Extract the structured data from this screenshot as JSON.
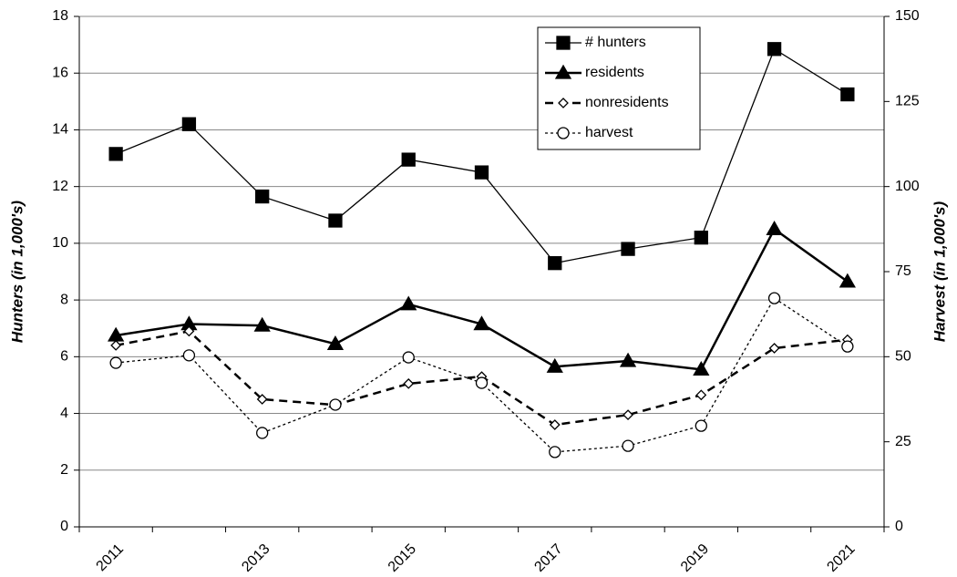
{
  "chart_data": {
    "type": "line",
    "categories": [
      "2011",
      null,
      "2013",
      null,
      "2015",
      null,
      "2017",
      null,
      "2019",
      null,
      "2021"
    ],
    "y_label": "Hunters (in 1,000's)",
    "y2_label": "Harvest (in 1,000's)",
    "ylim": [
      0,
      18
    ],
    "yticks": [
      0,
      2,
      4,
      6,
      8,
      10,
      12,
      14,
      16,
      18
    ],
    "y2lim": [
      0,
      150
    ],
    "y2ticks": [
      0,
      25,
      50,
      75,
      100,
      125,
      150
    ],
    "grid": true,
    "legend": "top-right",
    "series": [
      {
        "name": "# hunters",
        "color": "#000000",
        "marker": "square",
        "line_width": 1.3,
        "dash": "none",
        "values": [
          13.15,
          14.2,
          11.65,
          10.8,
          12.95,
          12.5,
          9.3,
          9.8,
          10.2,
          16.85,
          15.25
        ]
      },
      {
        "name": "residents",
        "color": "#000000",
        "marker": "triangle",
        "line_width": 2.5,
        "dash": "none",
        "values": [
          6.75,
          7.15,
          7.1,
          6.45,
          7.85,
          7.15,
          5.65,
          5.85,
          5.55,
          10.5,
          8.65
        ]
      },
      {
        "name": "nonresidents",
        "color": "#000000",
        "marker": "diamond",
        "line_width": 2.5,
        "dash": "9 6",
        "values": [
          6.4,
          6.9,
          4.5,
          4.3,
          5.05,
          5.3,
          3.6,
          3.95,
          4.65,
          6.3,
          6.6
        ]
      },
      {
        "name": "harvest",
        "color": "#000000",
        "marker": "circle",
        "line_width": 1.3,
        "dash": "3 3",
        "axis": "y2",
        "values": [
          48.2,
          50.4,
          27.6,
          35.9,
          49.8,
          42.3,
          22,
          23.8,
          29.7,
          67.2,
          53
        ]
      }
    ]
  }
}
